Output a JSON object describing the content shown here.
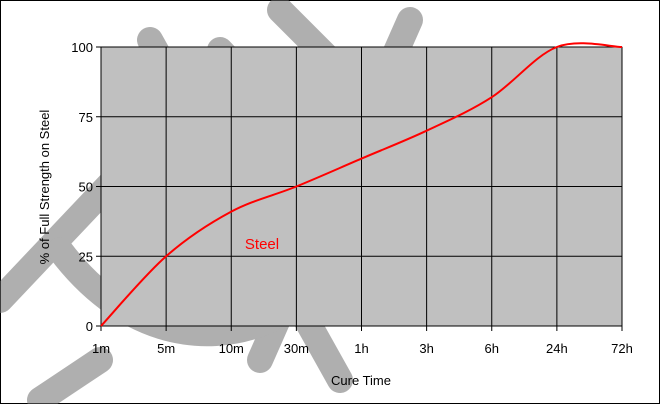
{
  "chart_data": {
    "type": "line",
    "title": "",
    "xlabel": "Cure Time",
    "ylabel": "% of Full Strength on Steel",
    "categories": [
      "1m",
      "5m",
      "10m",
      "30m",
      "1h",
      "3h",
      "6h",
      "24h",
      "72h"
    ],
    "yticks": [
      "0",
      "25",
      "50",
      "75",
      "100"
    ],
    "ylim": [
      0,
      100
    ],
    "grid": true,
    "plot_background": "#c0c0c0",
    "series": [
      {
        "name": "Steel",
        "color": "#ff0000",
        "points": [
          {
            "x": "1m",
            "y": 0
          },
          {
            "x": "5m",
            "y": 25
          },
          {
            "x": "10m",
            "y": 41
          },
          {
            "x": "30m",
            "y": 50
          },
          {
            "x": "1h",
            "y": 60
          },
          {
            "x": "3h",
            "y": 70
          },
          {
            "x": "6h",
            "y": 82
          },
          {
            "x": "24h",
            "y": 100
          },
          {
            "x": "72h",
            "y": 100
          }
        ]
      }
    ]
  }
}
